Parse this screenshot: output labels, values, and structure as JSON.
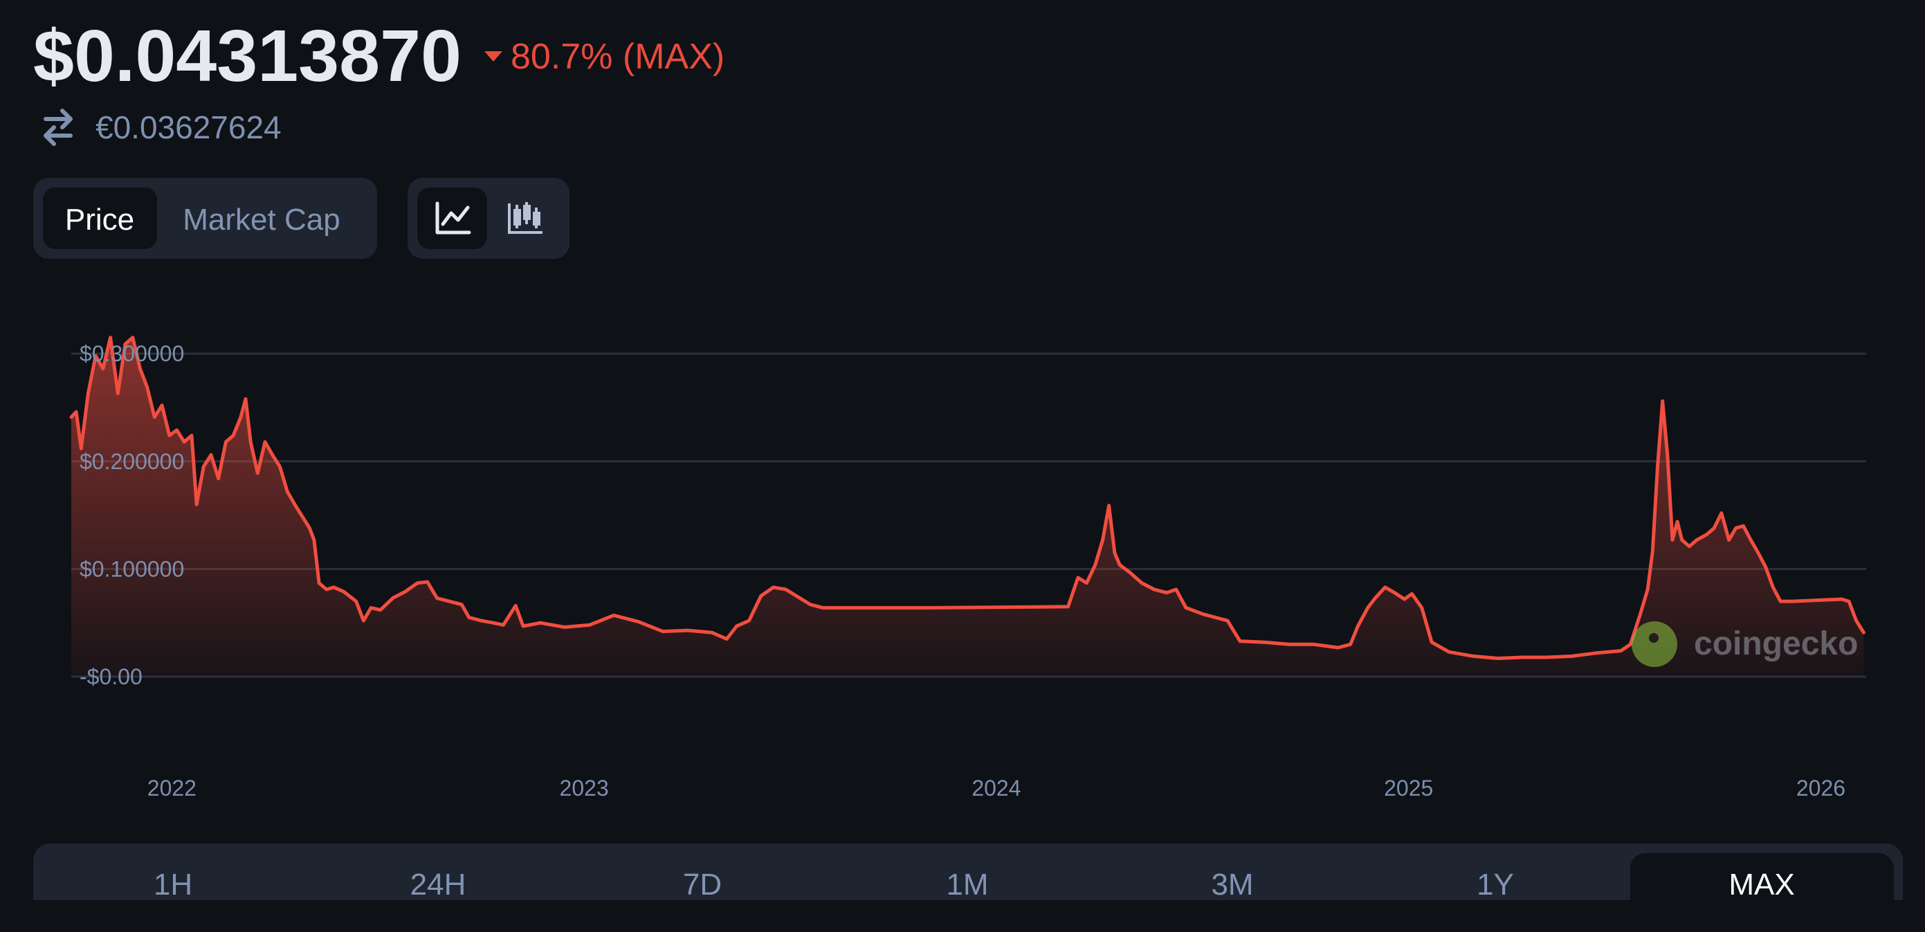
{
  "header": {
    "price": "$0.04313870",
    "change": "80.7% (MAX)",
    "converted": "€0.03627624"
  },
  "metric_toggle": [
    "Price",
    "Market Cap"
  ],
  "chart_data": {
    "type": "line",
    "color": "#f04e40",
    "grid": true,
    "watermark": "coingecko",
    "xlim": [
      2021.756,
      2026.11
    ],
    "xticks": [
      2022,
      2023,
      2024,
      2025,
      2026
    ],
    "ylim": [
      0,
      0.32
    ],
    "yticks": [
      {
        "value": 0,
        "label": "-$0.00"
      },
      {
        "value": 0.1,
        "label": "$0.100000"
      },
      {
        "value": 0.2,
        "label": "$0.200000"
      },
      {
        "value": 0.3,
        "label": "$0.300000"
      }
    ],
    "x": [
      2021.756,
      2021.768,
      2021.78,
      2021.797,
      2021.815,
      2021.833,
      2021.851,
      2021.869,
      2021.887,
      2021.905,
      2021.923,
      2021.94,
      2021.958,
      2021.976,
      2021.994,
      2022.012,
      2022.03,
      2022.048,
      2022.06,
      2022.077,
      2022.095,
      2022.113,
      2022.131,
      2022.149,
      2022.167,
      2022.179,
      2022.191,
      2022.208,
      2022.226,
      2022.244,
      2022.262,
      2022.28,
      2022.298,
      2022.316,
      2022.334,
      2022.345,
      2022.357,
      2022.375,
      2022.393,
      2022.417,
      2022.447,
      2022.465,
      2022.483,
      2022.506,
      2022.536,
      2022.566,
      2022.596,
      2022.62,
      2022.643,
      2022.673,
      2022.703,
      2022.721,
      2022.751,
      2022.78,
      2022.804,
      2022.834,
      2022.852,
      2022.894,
      2022.953,
      2023.013,
      2023.072,
      2023.132,
      2023.191,
      2023.251,
      2023.31,
      2023.346,
      2023.37,
      2023.4,
      2023.429,
      2023.459,
      2023.489,
      2023.519,
      2023.549,
      2023.579,
      2023.847,
      2024.174,
      2024.198,
      2024.219,
      2024.24,
      2024.258,
      2024.273,
      2024.287,
      2024.299,
      2024.323,
      2024.353,
      2024.383,
      2024.413,
      2024.436,
      2024.46,
      2024.502,
      2024.561,
      2024.591,
      2024.651,
      2024.71,
      2024.77,
      2024.829,
      2024.859,
      2024.877,
      2024.901,
      2024.919,
      2024.943,
      2024.966,
      2024.99,
      2025.008,
      2025.032,
      2025.056,
      2025.098,
      2025.157,
      2025.217,
      2025.276,
      2025.336,
      2025.396,
      2025.455,
      2025.515,
      2025.538,
      2025.562,
      2025.58,
      2025.592,
      2025.604,
      2025.616,
      2025.628,
      2025.64,
      2025.652,
      2025.663,
      2025.681,
      2025.699,
      2025.723,
      2025.741,
      2025.759,
      2025.777,
      2025.794,
      2025.812,
      2025.83,
      2025.848,
      2025.866,
      2025.884,
      2025.902,
      2025.931,
      2025.991,
      2026.051,
      2026.068,
      2026.086,
      2026.104
    ],
    "values": [
      0.241,
      0.246,
      0.212,
      0.263,
      0.298,
      0.286,
      0.315,
      0.263,
      0.309,
      0.315,
      0.286,
      0.269,
      0.241,
      0.252,
      0.224,
      0.229,
      0.218,
      0.224,
      0.16,
      0.195,
      0.206,
      0.184,
      0.218,
      0.224,
      0.241,
      0.258,
      0.218,
      0.189,
      0.218,
      0.206,
      0.195,
      0.172,
      0.16,
      0.149,
      0.138,
      0.127,
      0.087,
      0.081,
      0.083,
      0.079,
      0.07,
      0.052,
      0.064,
      0.062,
      0.073,
      0.079,
      0.087,
      0.088,
      0.073,
      0.07,
      0.067,
      0.055,
      0.052,
      0.05,
      0.048,
      0.066,
      0.047,
      0.05,
      0.046,
      0.048,
      0.057,
      0.051,
      0.042,
      0.043,
      0.041,
      0.035,
      0.047,
      0.052,
      0.075,
      0.083,
      0.081,
      0.074,
      0.067,
      0.064,
      0.064,
      0.065,
      0.092,
      0.087,
      0.104,
      0.127,
      0.159,
      0.115,
      0.104,
      0.097,
      0.087,
      0.081,
      0.078,
      0.081,
      0.064,
      0.058,
      0.052,
      0.033,
      0.032,
      0.03,
      0.03,
      0.027,
      0.03,
      0.047,
      0.064,
      0.073,
      0.083,
      0.078,
      0.072,
      0.077,
      0.064,
      0.032,
      0.023,
      0.019,
      0.017,
      0.018,
      0.018,
      0.019,
      0.022,
      0.024,
      0.03,
      0.058,
      0.081,
      0.117,
      0.195,
      0.256,
      0.206,
      0.127,
      0.144,
      0.127,
      0.121,
      0.127,
      0.132,
      0.138,
      0.152,
      0.127,
      0.138,
      0.14,
      0.127,
      0.115,
      0.102,
      0.083,
      0.07,
      0.07,
      0.071,
      0.072,
      0.07,
      0.052,
      0.041
    ]
  },
  "ranges": [
    "1H",
    "24H",
    "7D",
    "1M",
    "3M",
    "1Y",
    "MAX"
  ]
}
